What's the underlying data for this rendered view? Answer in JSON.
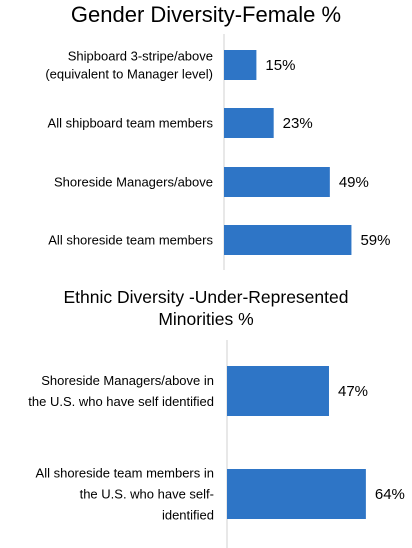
{
  "chart_data": [
    {
      "type": "bar",
      "orientation": "horizontal",
      "title": "Gender Diversity-Female %",
      "categories": [
        [
          "Shipboard 3-stripe/above",
          "(equivalent to Manager level)"
        ],
        [
          "All shipboard team members"
        ],
        [
          "Shoreside Managers/above"
        ],
        [
          "All shoreside team members"
        ]
      ],
      "values": [
        15,
        23,
        49,
        59
      ],
      "labels": [
        "15%",
        "23%",
        "49%",
        "59%"
      ],
      "color": "#2E75C6",
      "xlim": [
        0,
        100
      ],
      "grid": false,
      "legend": "none"
    },
    {
      "type": "bar",
      "orientation": "horizontal",
      "title_lines": [
        "Ethnic Diversity -Under-Represented",
        "Minorities %"
      ],
      "categories": [
        [
          "Shoreside Managers/above in",
          "the U.S. who have self identified"
        ],
        [
          "All shoreside team members in",
          "the U.S. who have self-",
          "identified"
        ]
      ],
      "values": [
        47,
        64
      ],
      "labels": [
        "47%",
        "64%"
      ],
      "color": "#2E75C6",
      "xlim": [
        0,
        100
      ],
      "grid": false,
      "legend": "none"
    }
  ]
}
